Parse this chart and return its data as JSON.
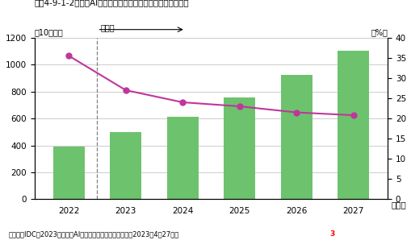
{
  "title": "図袅4-9-1-2　国内AIシステムの市場規模（支出額）及び予測",
  "years": [
    "2022",
    "2023",
    "2024",
    "2025",
    "2026",
    "2027"
  ],
  "bar_values": [
    390,
    500,
    610,
    755,
    925,
    1100
  ],
  "line_values": [
    35.5,
    27.0,
    24.0,
    23.0,
    21.5,
    20.8
  ],
  "bar_color": "#6DC36D",
  "line_color": "#C0369C",
  "ylabel_left": "（10億円）",
  "ylabel_right": "（%）",
  "ylim_left": [
    0,
    1200
  ],
  "ylim_right": [
    0,
    40
  ],
  "yticks_left": [
    0,
    200,
    400,
    600,
    800,
    1000,
    1200
  ],
  "yticks_right": [
    0,
    5,
    10,
    15,
    20,
    25,
    30,
    35,
    40
  ],
  "xlabel": "（年）",
  "forecast_label": "予測値",
  "source_text": "（出典）IDC「2023年　国内AIシステム市場予測を発表」（2023年4月27日）",
  "source_superscript": "3",
  "bg_color": "#ffffff",
  "grid_color": "#cccccc"
}
